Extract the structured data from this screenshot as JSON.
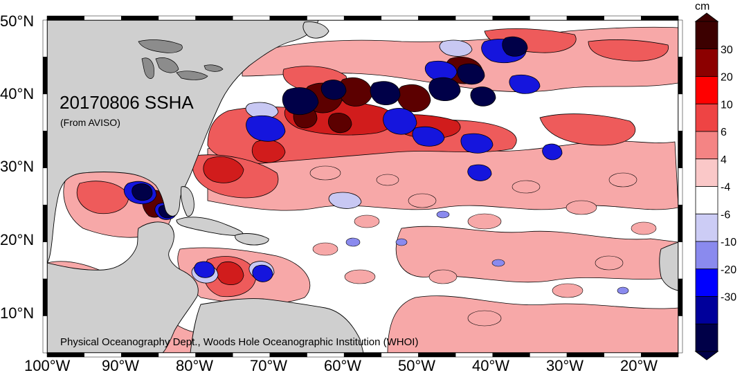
{
  "map": {
    "title": "20170806 SSHA",
    "subtitle": "(From AVISO)",
    "credit": "Physical Oceanography Dept., Woods Hole Oceanographic Institution (WHOI)",
    "lat_labels": [
      "50°N",
      "40°N",
      "30°N",
      "20°N",
      "10°N"
    ],
    "lon_labels": [
      "100°W",
      "90°W",
      "80°W",
      "70°W",
      "60°W",
      "50°W",
      "40°W",
      "30°W",
      "20°W"
    ],
    "colors": {
      "land": "#cfcfcf",
      "ocean_neutral": "#ffffff",
      "pos_light": "#f7a8a8",
      "pos_mid": "#ee5b5b",
      "pos_strong": "#d11c1c",
      "pos_extreme": "#5c0000",
      "neg_light": "#c8c8f3",
      "neg_mid": "#1515dd",
      "neg_extreme": "#000048"
    }
  },
  "colorbar": {
    "unit": "cm",
    "labels": [
      "30",
      "20",
      "10",
      "6",
      "4",
      "-4",
      "-6",
      "-10",
      "-20",
      "-30"
    ],
    "colors": [
      "#3c0000",
      "#8c0000",
      "#ff0000",
      "#ee4444",
      "#f48484",
      "#fac8c8",
      "#ffffff",
      "#ccccf5",
      "#8a8aee",
      "#0000ff",
      "#00009b",
      "#000048"
    ]
  }
}
